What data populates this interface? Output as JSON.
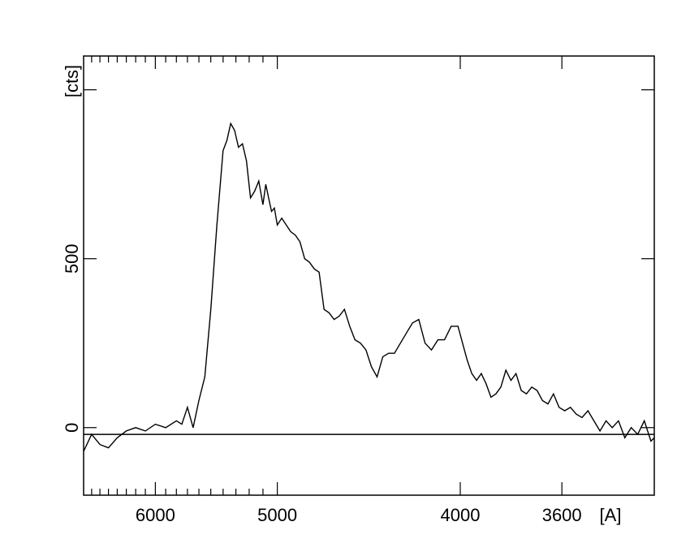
{
  "chart_data": {
    "type": "line",
    "title": "",
    "xlabel": "[A]",
    "ylabel": "[cts]",
    "x_scale": "reciprocal",
    "x_axis_direction": "decreasing",
    "xlim": [
      6800,
      3300
    ],
    "ylim": [
      -200,
      1100
    ],
    "x_ticks": [
      {
        "value": 6000,
        "label": "6000"
      },
      {
        "value": 5000,
        "label": "5000"
      },
      {
        "value": 4000,
        "label": "4000"
      },
      {
        "value": 3600,
        "label": "3600"
      }
    ],
    "y_ticks": [
      {
        "value": 0,
        "label": "0"
      },
      {
        "value": 500,
        "label": "500"
      }
    ],
    "y_major_ticks": [
      0,
      500,
      1000
    ],
    "grid": false,
    "zero_line": -20,
    "series": [
      {
        "name": "",
        "color": "#000000",
        "x": [
          6800,
          6700,
          6600,
          6500,
          6400,
          6300,
          6200,
          6100,
          6000,
          5900,
          5800,
          5750,
          5700,
          5650,
          5600,
          5550,
          5500,
          5450,
          5400,
          5370,
          5340,
          5310,
          5280,
          5250,
          5220,
          5190,
          5160,
          5130,
          5100,
          5080,
          5060,
          5040,
          5020,
          5000,
          4970,
          4940,
          4910,
          4880,
          4850,
          4820,
          4790,
          4760,
          4730,
          4700,
          4670,
          4640,
          4610,
          4580,
          4550,
          4520,
          4490,
          4460,
          4430,
          4400,
          4370,
          4340,
          4310,
          4280,
          4250,
          4220,
          4190,
          4160,
          4130,
          4100,
          4070,
          4040,
          4010,
          3990,
          3970,
          3950,
          3930,
          3910,
          3890,
          3870,
          3850,
          3830,
          3810,
          3790,
          3770,
          3750,
          3730,
          3710,
          3690,
          3670,
          3650,
          3630,
          3610,
          3590,
          3570,
          3550,
          3530,
          3510,
          3490,
          3470,
          3450,
          3430,
          3410,
          3390,
          3370,
          3350,
          3330,
          3310,
          3300
        ],
        "y": [
          -70,
          -20,
          -50,
          -60,
          -30,
          -10,
          0,
          -10,
          10,
          0,
          20,
          10,
          60,
          0,
          80,
          150,
          350,
          600,
          820,
          850,
          900,
          880,
          830,
          840,
          790,
          680,
          700,
          730,
          660,
          720,
          680,
          640,
          650,
          600,
          620,
          600,
          580,
          570,
          550,
          500,
          490,
          470,
          460,
          350,
          340,
          320,
          330,
          350,
          300,
          260,
          250,
          230,
          180,
          150,
          210,
          220,
          220,
          250,
          280,
          310,
          320,
          250,
          230,
          260,
          260,
          300,
          300,
          250,
          200,
          160,
          140,
          160,
          130,
          90,
          100,
          120,
          170,
          140,
          160,
          110,
          100,
          120,
          110,
          80,
          70,
          100,
          60,
          50,
          60,
          40,
          30,
          50,
          20,
          -10,
          20,
          0,
          20,
          -30,
          0,
          -20,
          20,
          -40,
          -30
        ]
      }
    ]
  }
}
